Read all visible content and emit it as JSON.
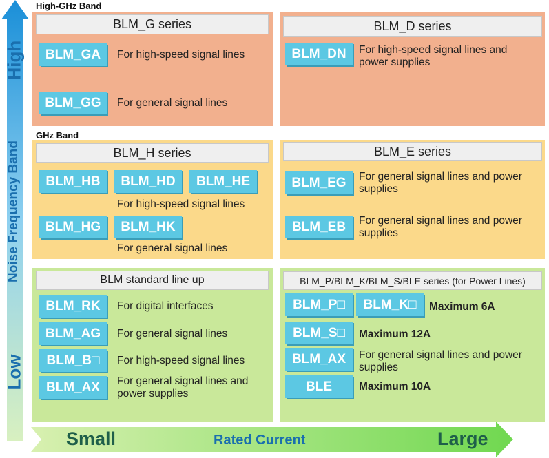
{
  "y_axis": {
    "top": "High",
    "title": "Noise Frequency Band",
    "bottom": "Low"
  },
  "x_axis": {
    "left": "Small",
    "title": "Rated Current",
    "right": "Large"
  },
  "bands": [
    {
      "label": "High-GHz Band",
      "panels": [
        {
          "title": "BLM_G series",
          "items": [
            {
              "parts": [
                "BLM_GA"
              ],
              "text": "For high-speed signal lines"
            },
            {
              "parts": [
                "BLM_GG"
              ],
              "text": "For general signal lines"
            }
          ]
        },
        {
          "title": "BLM_D series",
          "items": [
            {
              "parts": [
                "BLM_DN"
              ],
              "text": "For high-speed signal lines and power supplies"
            }
          ]
        }
      ]
    },
    {
      "label": "GHz Band",
      "panels": [
        {
          "title": "BLM_H series",
          "items": [
            {
              "parts": [
                "BLM_HB",
                "BLM_HD",
                "BLM_HE"
              ],
              "text": "For high-speed signal lines"
            },
            {
              "parts": [
                "BLM_HG",
                "BLM_HK"
              ],
              "text": "For general signal lines"
            }
          ]
        },
        {
          "title": "BLM_E series",
          "items": [
            {
              "parts": [
                "BLM_EG"
              ],
              "text": "For general signal lines and power supplies"
            },
            {
              "parts": [
                "BLM_EB"
              ],
              "text": "For general signal lines and power supplies"
            }
          ]
        }
      ]
    },
    {
      "panels": [
        {
          "title": "BLM standard line up",
          "items": [
            {
              "parts": [
                "BLM_RK"
              ],
              "text": "For digital interfaces"
            },
            {
              "parts": [
                "BLM_AG"
              ],
              "text": "For general signal lines"
            },
            {
              "parts": [
                "BLM_B□"
              ],
              "text": "For high-speed signal lines"
            },
            {
              "parts": [
                "BLM_AX"
              ],
              "text": "For general signal lines and power supplies"
            }
          ]
        },
        {
          "title": "BLM_P/BLM_K/BLM_S/BLE series",
          "title_note": "(for Power Lines)",
          "items": [
            {
              "parts": [
                "BLM_P□",
                "BLM_K□"
              ],
              "text": "Maximum 6A"
            },
            {
              "parts": [
                "BLM_S□"
              ],
              "text": "Maximum 12A"
            },
            {
              "parts": [
                "BLM_AX"
              ],
              "text": "For general signal lines and power supplies"
            },
            {
              "parts": [
                "BLE"
              ],
              "text": "Maximum 10A"
            }
          ]
        }
      ]
    }
  ]
}
